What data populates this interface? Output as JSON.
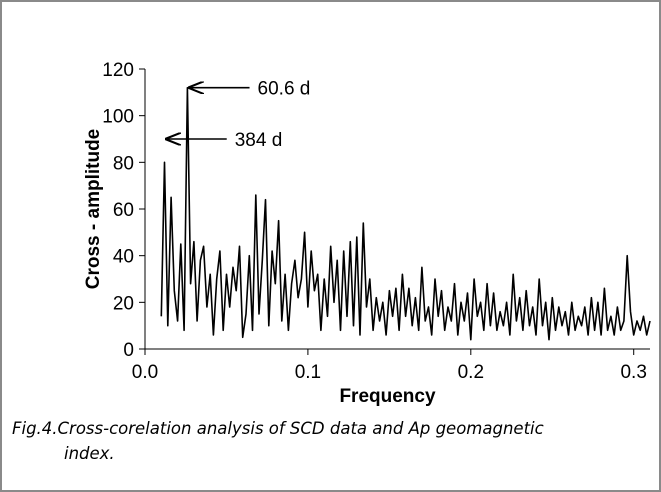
{
  "chart_data": {
    "type": "line",
    "title": "",
    "xlabel": "Frequency",
    "ylabel": "Cross - amplitude",
    "xlim": [
      0,
      0.31
    ],
    "ylim": [
      0,
      120
    ],
    "x_ticks": [
      "0.0",
      "0.1",
      "0.2",
      "0.3"
    ],
    "y_ticks": [
      "0",
      "20",
      "40",
      "60",
      "80",
      "100",
      "120"
    ],
    "grid": false,
    "legend": "none",
    "series": [
      {
        "color": "#000000",
        "x": [
          0.01,
          0.012,
          0.014,
          0.016,
          0.018,
          0.02,
          0.022,
          0.024,
          0.026,
          0.028,
          0.03,
          0.032,
          0.034,
          0.036,
          0.038,
          0.04,
          0.042,
          0.044,
          0.046,
          0.048,
          0.05,
          0.052,
          0.054,
          0.056,
          0.058,
          0.06,
          0.062,
          0.064,
          0.066,
          0.068,
          0.07,
          0.072,
          0.074,
          0.076,
          0.078,
          0.08,
          0.082,
          0.084,
          0.086,
          0.088,
          0.09,
          0.092,
          0.094,
          0.096,
          0.098,
          0.1,
          0.102,
          0.104,
          0.106,
          0.108,
          0.11,
          0.112,
          0.114,
          0.116,
          0.118,
          0.12,
          0.122,
          0.124,
          0.126,
          0.128,
          0.13,
          0.132,
          0.134,
          0.136,
          0.138,
          0.14,
          0.142,
          0.144,
          0.146,
          0.148,
          0.15,
          0.152,
          0.154,
          0.156,
          0.158,
          0.16,
          0.162,
          0.164,
          0.166,
          0.168,
          0.17,
          0.172,
          0.174,
          0.176,
          0.178,
          0.18,
          0.182,
          0.184,
          0.186,
          0.188,
          0.19,
          0.192,
          0.194,
          0.196,
          0.198,
          0.2,
          0.202,
          0.204,
          0.206,
          0.208,
          0.21,
          0.212,
          0.214,
          0.216,
          0.218,
          0.22,
          0.222,
          0.224,
          0.226,
          0.228,
          0.23,
          0.232,
          0.234,
          0.236,
          0.238,
          0.24,
          0.242,
          0.244,
          0.246,
          0.248,
          0.25,
          0.252,
          0.254,
          0.256,
          0.258,
          0.26,
          0.262,
          0.264,
          0.266,
          0.268,
          0.27,
          0.272,
          0.274,
          0.276,
          0.278,
          0.28,
          0.282,
          0.284,
          0.286,
          0.288,
          0.29,
          0.292,
          0.294,
          0.296,
          0.298,
          0.3,
          0.302,
          0.304,
          0.306,
          0.308,
          0.31
        ],
        "values": [
          14,
          80,
          10,
          65,
          25,
          12,
          45,
          8,
          112,
          28,
          46,
          12,
          38,
          44,
          18,
          32,
          6,
          30,
          42,
          8,
          32,
          18,
          35,
          25,
          44,
          5,
          15,
          40,
          8,
          66,
          15,
          38,
          64,
          10,
          42,
          28,
          55,
          12,
          32,
          8,
          28,
          38,
          22,
          30,
          50,
          18,
          42,
          25,
          32,
          8,
          30,
          14,
          44,
          20,
          38,
          8,
          42,
          14,
          46,
          10,
          48,
          6,
          54,
          18,
          30,
          8,
          22,
          12,
          20,
          6,
          25,
          14,
          26,
          8,
          32,
          14,
          26,
          10,
          22,
          8,
          35,
          12,
          18,
          6,
          30,
          14,
          25,
          8,
          18,
          12,
          28,
          6,
          20,
          12,
          24,
          4,
          30,
          14,
          20,
          8,
          28,
          10,
          24,
          8,
          16,
          10,
          20,
          6,
          32,
          12,
          22,
          8,
          25,
          10,
          18,
          6,
          30,
          10,
          20,
          4,
          22,
          8,
          18,
          10,
          16,
          6,
          20,
          8,
          14,
          10,
          18,
          6,
          22,
          8,
          20,
          6,
          26,
          8,
          14,
          6,
          18,
          8,
          12,
          40,
          16,
          6,
          12,
          8,
          14,
          6,
          12
        ]
      }
    ],
    "annotations": [
      {
        "text": "60.6 d",
        "x": 0.0255,
        "y": 112
      },
      {
        "text": "384 d",
        "x": 0.0115,
        "y": 90
      }
    ]
  },
  "caption": {
    "line1": "Fig.4.Cross-corelation analysis of SCD data and Ap geomagnetic",
    "line2": "index."
  }
}
